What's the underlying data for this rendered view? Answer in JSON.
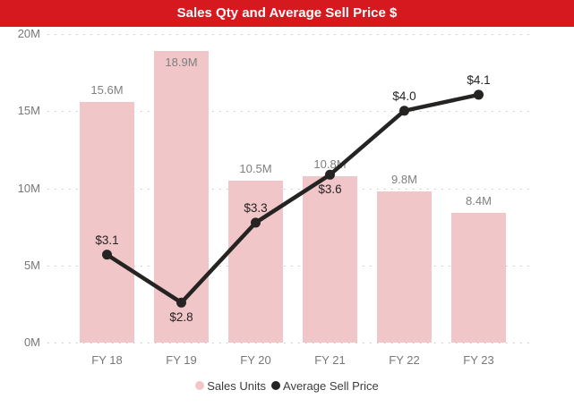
{
  "banner": {
    "title": "Sales Qty and Average Sell Price $"
  },
  "colors": {
    "banner_bg": "#d6191f",
    "banner_text": "#ffffff",
    "bar_fill": "#f0c6c9",
    "line_color": "#252423",
    "bar_label": "#7f7f7f",
    "axis_label": "#777777",
    "gridline": "#c3c3c3",
    "legend_text": "#3d3d3d",
    "background": "#ffffff"
  },
  "chart_data": {
    "type": "combo-bar-line",
    "title": "Sales Qty and Average Sell Price $",
    "categories": [
      "FY 18",
      "FY 19",
      "FY 20",
      "FY 21",
      "FY 22",
      "FY 23"
    ],
    "series": [
      {
        "name": "Sales Units",
        "type": "bar",
        "axis": "primary",
        "values": [
          15.6,
          18.9,
          10.5,
          10.8,
          9.8,
          8.4
        ],
        "labels": [
          "15.6M",
          "18.9M",
          "10.5M",
          "10.8M",
          "9.8M",
          "8.4M"
        ],
        "color": "#f0c6c9"
      },
      {
        "name": "Average Sell Price",
        "type": "line",
        "axis": "secondary",
        "values": [
          3.1,
          2.8,
          3.3,
          3.6,
          4.0,
          4.1
        ],
        "labels": [
          "$3.1",
          "$2.8",
          "$3.3",
          "$3.6",
          "$4.0",
          "$4.1"
        ],
        "label_positions": [
          "above",
          "below",
          "above",
          "below",
          "above",
          "above"
        ],
        "color": "#252423"
      }
    ],
    "xlabel": "",
    "ylabel": "",
    "y_ticks": [
      "20M",
      "15M",
      "10M",
      "5M",
      "0M"
    ],
    "y_tick_values": [
      20,
      15,
      10,
      5,
      0
    ],
    "ylim": [
      0,
      20
    ],
    "y2lim": [
      2.55,
      4.48
    ],
    "grid": "horizontal-dotted",
    "legend_position": "bottom-center",
    "legend": [
      {
        "label": "Sales Units",
        "color": "#f0c6c9"
      },
      {
        "label": "Average Sell Price",
        "color": "#252423"
      }
    ]
  }
}
